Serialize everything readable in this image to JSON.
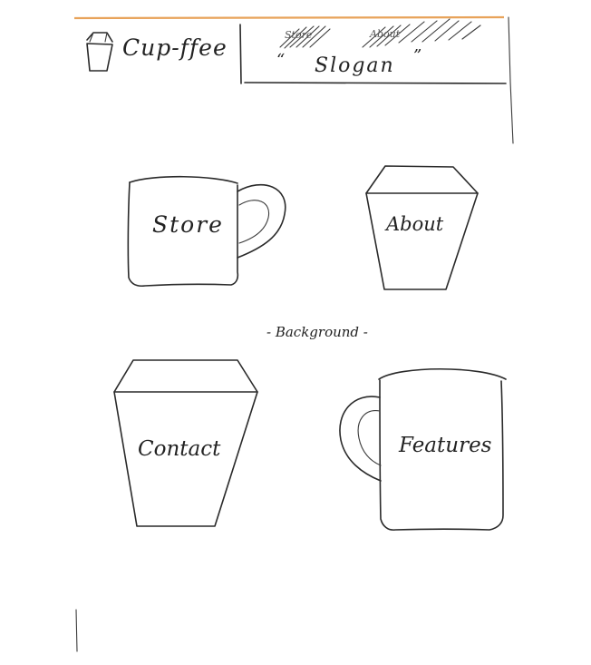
{
  "header": {
    "brand": "Cup-ffee",
    "slogan": "Slogan",
    "quote_open": "“",
    "quote_close": "”",
    "nav_scribbles": [
      "Store",
      "About"
    ]
  },
  "background_note": "- Background -",
  "cups": {
    "store": {
      "label": "Store"
    },
    "about": {
      "label": "About"
    },
    "contact": {
      "label": "Contact"
    },
    "features": {
      "label": "Features"
    }
  },
  "colors": {
    "accent": "#e8a35a",
    "ink": "#2a2a2a"
  },
  "icons": [
    "cup-logo-icon",
    "mug-icon",
    "tumbler-icon"
  ]
}
